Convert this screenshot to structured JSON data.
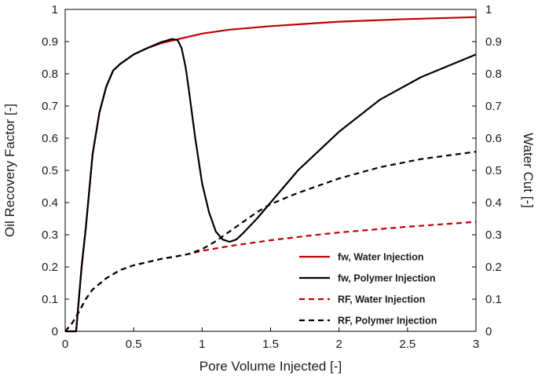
{
  "chart_data": {
    "type": "line",
    "title": "",
    "xlabel": "Pore Volume Injected  [-]",
    "ylabel": "Oil Recovery Factor  [-]",
    "y2label": "Water Cut  [-]",
    "xlim": [
      0,
      3
    ],
    "ylim": [
      0,
      1
    ],
    "y2lim": [
      0,
      1
    ],
    "x_ticks": [
      0,
      0.5,
      1,
      1.5,
      2,
      2.5,
      3
    ],
    "x_tick_labels": [
      "0",
      "0.5",
      "1",
      "1.5",
      "2",
      "2.5",
      "3"
    ],
    "y_ticks": [
      0,
      0.1,
      0.2,
      0.3,
      0.4,
      0.5,
      0.6,
      0.7,
      0.8,
      0.9,
      1
    ],
    "y_tick_labels": [
      "0",
      "0.1",
      "0.2",
      "0.3",
      "0.4",
      "0.5",
      "0.6",
      "0.7",
      "0.8",
      "0.9",
      "1"
    ],
    "y2_tick_labels": [
      "0",
      "0.1",
      "0.2",
      "0.3",
      "0.4",
      "0.5",
      "0.6",
      "0.7",
      "0.8",
      "0.9",
      "1"
    ],
    "grid": false,
    "legend_position": "bottom-right",
    "series": [
      {
        "name": "fw, Water Injection",
        "axis": "right",
        "color": "#c00000",
        "dash": "solid",
        "x": [
          0,
          0.08,
          0.1,
          0.12,
          0.15,
          0.2,
          0.25,
          0.3,
          0.35,
          0.4,
          0.5,
          0.6,
          0.7,
          0.8,
          0.9,
          1.0,
          1.2,
          1.5,
          2.0,
          2.5,
          3.0
        ],
        "y": [
          0,
          0,
          0.1,
          0.2,
          0.32,
          0.55,
          0.68,
          0.76,
          0.81,
          0.83,
          0.86,
          0.88,
          0.895,
          0.905,
          0.915,
          0.925,
          0.937,
          0.948,
          0.962,
          0.97,
          0.976
        ]
      },
      {
        "name": "fw, Polymer Injection",
        "axis": "right",
        "color": "#000000",
        "dash": "solid",
        "x": [
          0,
          0.08,
          0.1,
          0.12,
          0.15,
          0.2,
          0.25,
          0.3,
          0.35,
          0.4,
          0.5,
          0.6,
          0.7,
          0.78,
          0.82,
          0.85,
          0.88,
          0.9,
          0.95,
          1.0,
          1.05,
          1.1,
          1.15,
          1.2,
          1.25,
          1.3,
          1.4,
          1.5,
          1.7,
          2.0,
          2.3,
          2.6,
          3.0
        ],
        "y": [
          0,
          0,
          0.1,
          0.2,
          0.32,
          0.55,
          0.68,
          0.76,
          0.81,
          0.83,
          0.86,
          0.88,
          0.898,
          0.908,
          0.905,
          0.88,
          0.82,
          0.76,
          0.6,
          0.46,
          0.37,
          0.31,
          0.285,
          0.278,
          0.285,
          0.305,
          0.35,
          0.4,
          0.5,
          0.62,
          0.72,
          0.79,
          0.86
        ]
      },
      {
        "name": "RF, Water Injection",
        "axis": "left",
        "color": "#c00000",
        "dash": "dashed",
        "x": [
          0,
          0.05,
          0.1,
          0.15,
          0.2,
          0.3,
          0.4,
          0.5,
          0.6,
          0.7,
          0.8,
          0.9,
          1.0,
          1.2,
          1.5,
          1.8,
          2.0,
          2.5,
          3.0
        ],
        "y": [
          0,
          0.025,
          0.06,
          0.1,
          0.13,
          0.165,
          0.19,
          0.205,
          0.215,
          0.225,
          0.232,
          0.24,
          0.25,
          0.265,
          0.283,
          0.298,
          0.307,
          0.325,
          0.34
        ]
      },
      {
        "name": "RF, Polymer Injection",
        "axis": "left",
        "color": "#000000",
        "dash": "dashed",
        "x": [
          0,
          0.05,
          0.1,
          0.15,
          0.2,
          0.3,
          0.4,
          0.5,
          0.6,
          0.7,
          0.8,
          0.9,
          1.0,
          1.1,
          1.2,
          1.3,
          1.4,
          1.5,
          1.7,
          2.0,
          2.3,
          2.6,
          3.0
        ],
        "y": [
          0,
          0.025,
          0.06,
          0.1,
          0.13,
          0.165,
          0.19,
          0.205,
          0.215,
          0.225,
          0.232,
          0.24,
          0.255,
          0.28,
          0.31,
          0.34,
          0.37,
          0.395,
          0.43,
          0.475,
          0.51,
          0.535,
          0.558
        ]
      }
    ]
  }
}
